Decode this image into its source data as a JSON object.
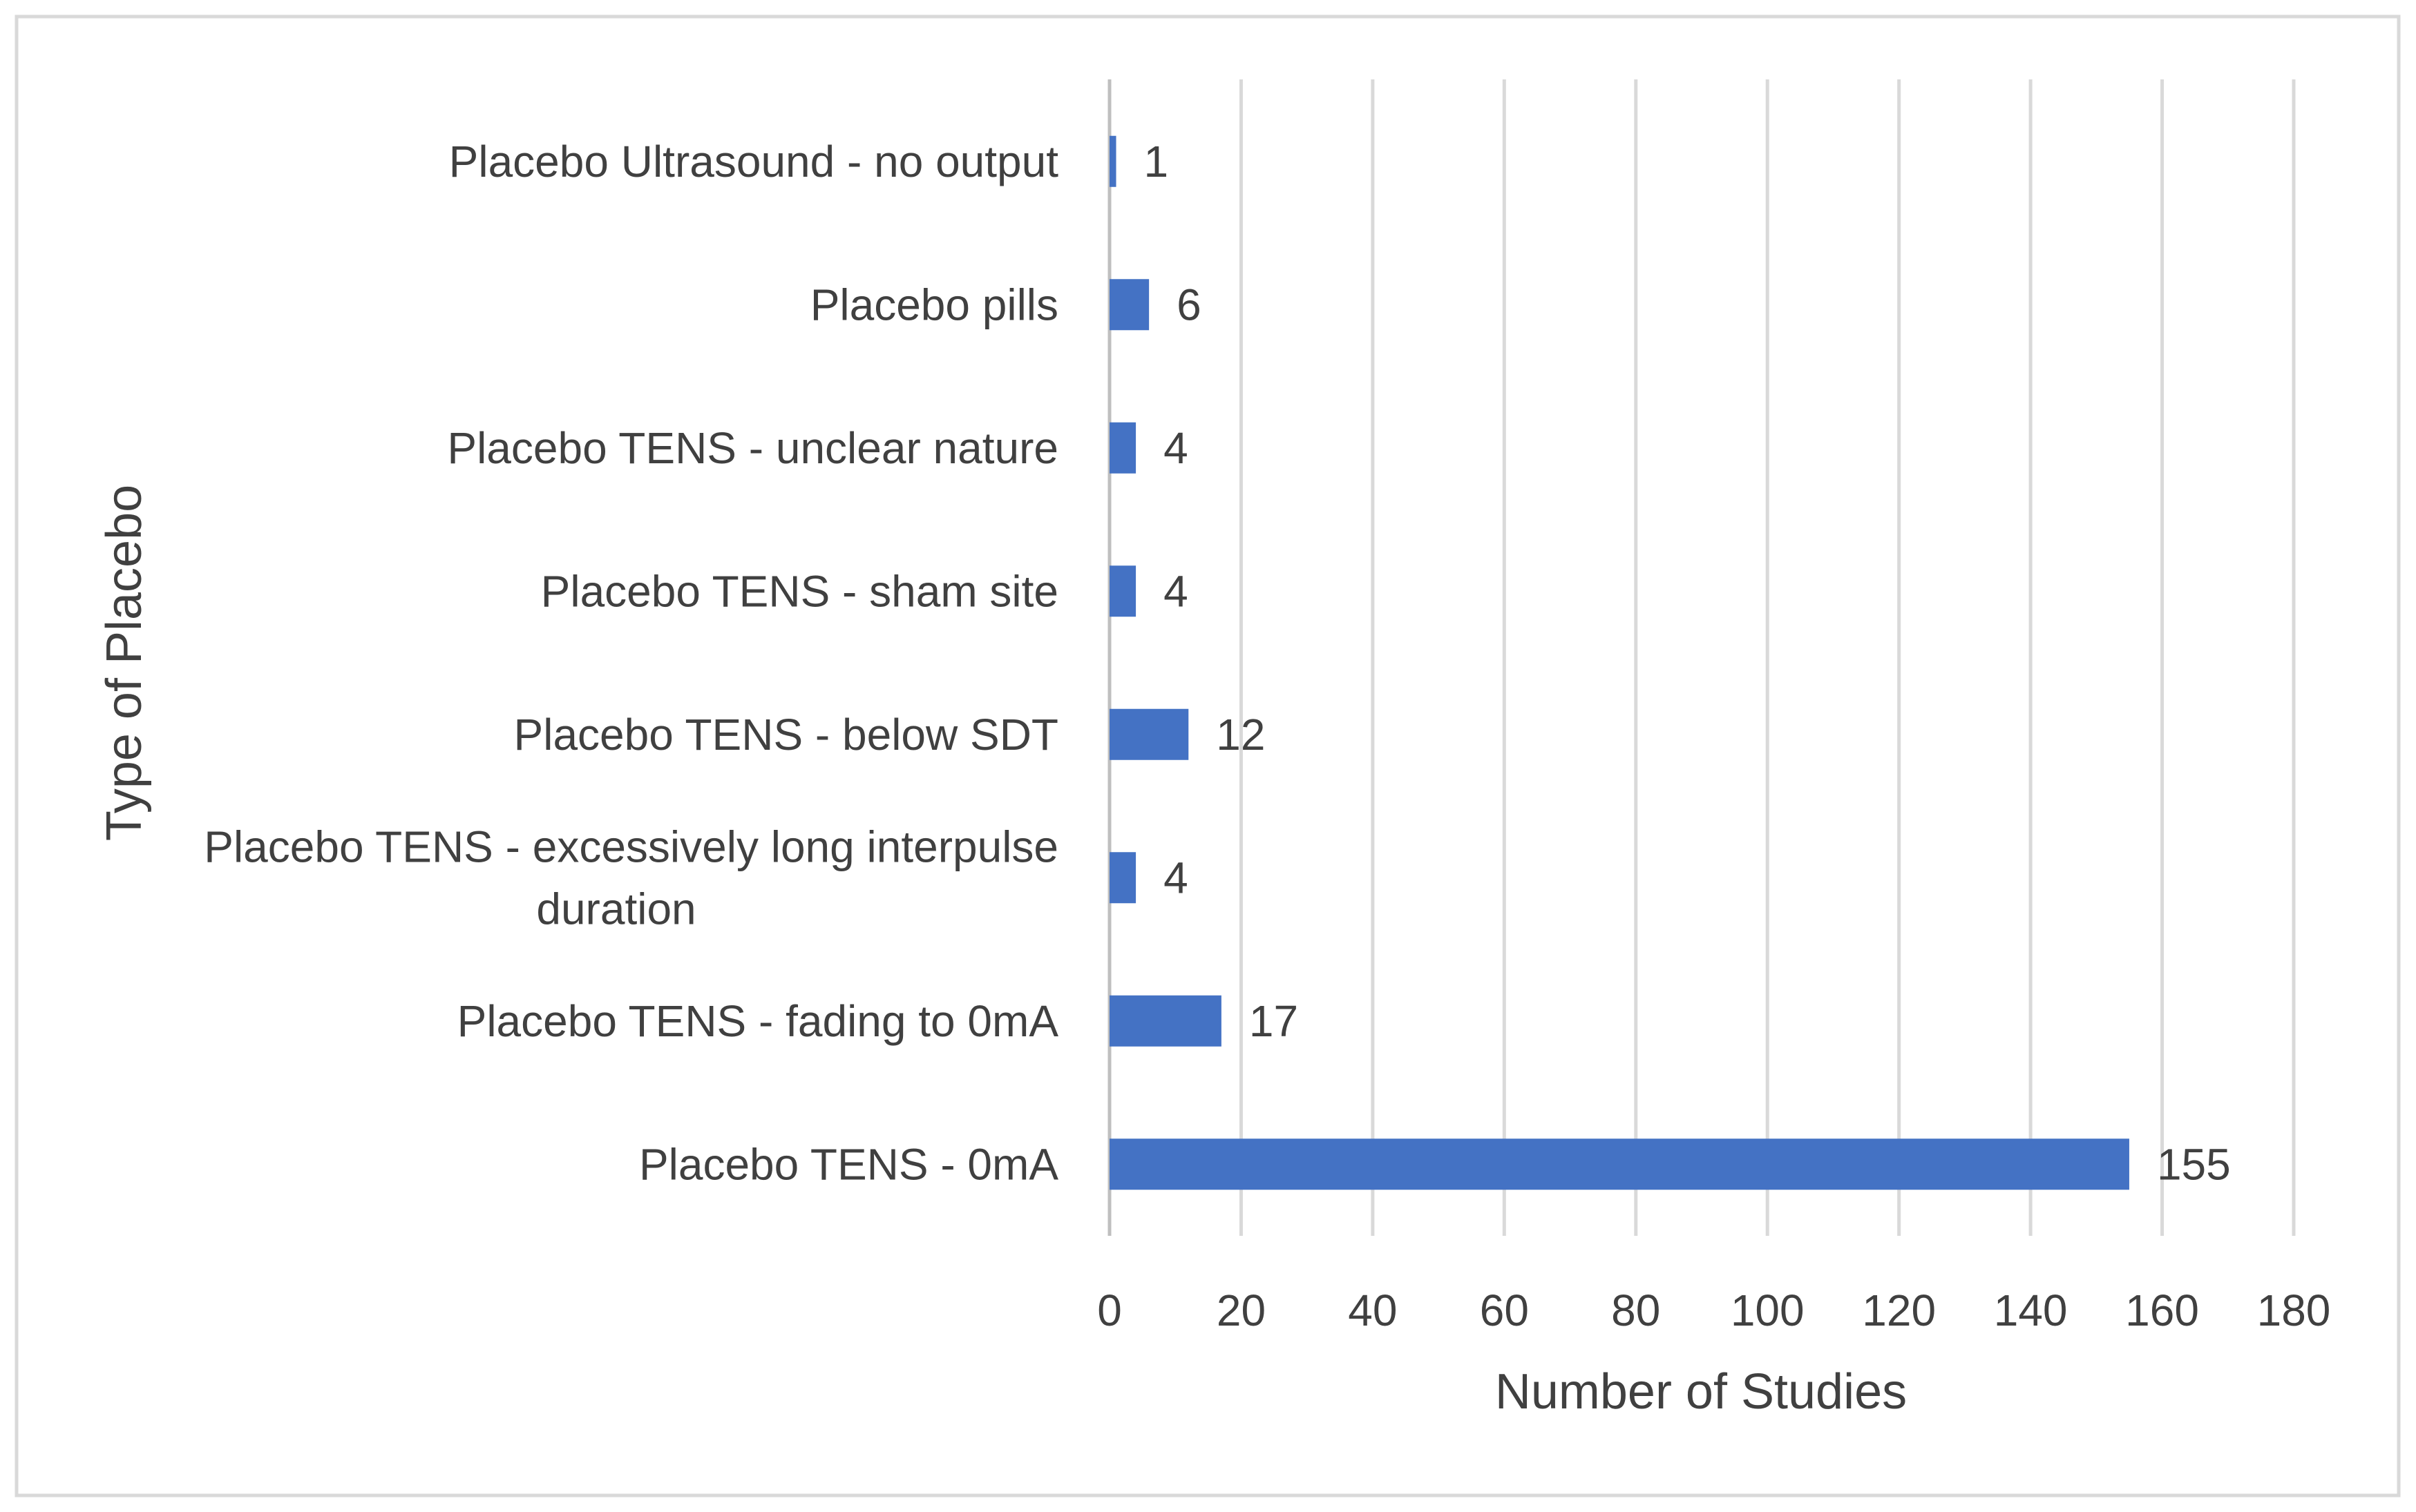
{
  "chart_data": {
    "type": "bar",
    "orientation": "horizontal",
    "title": "",
    "xlabel": "Number of Studies",
    "ylabel": "Type of Placebo",
    "xlim": [
      0,
      180
    ],
    "xticks": [
      0,
      20,
      40,
      60,
      80,
      100,
      120,
      140,
      160,
      180
    ],
    "grid": true,
    "legend": "none",
    "colors": {
      "bar": "#4472C4",
      "grid": "#D9D9D9",
      "text": "#404040",
      "frame": "#D9D9D9"
    },
    "categories": [
      {
        "lines": [
          "Placebo Ultrasound - no output"
        ],
        "value": 1
      },
      {
        "lines": [
          "Placebo pills"
        ],
        "value": 6
      },
      {
        "lines": [
          "Placebo TENS - unclear nature"
        ],
        "value": 4
      },
      {
        "lines": [
          "Placebo TENS - sham site"
        ],
        "value": 4
      },
      {
        "lines": [
          "Placebo TENS - below SDT"
        ],
        "value": 12
      },
      {
        "lines": [
          "Placebo TENS - excessively long interpulse",
          "duration"
        ],
        "value": 4
      },
      {
        "lines": [
          "Placebo TENS - fading to 0mA"
        ],
        "value": 17
      },
      {
        "lines": [
          "Placebo TENS - 0mA"
        ],
        "value": 155
      }
    ]
  }
}
